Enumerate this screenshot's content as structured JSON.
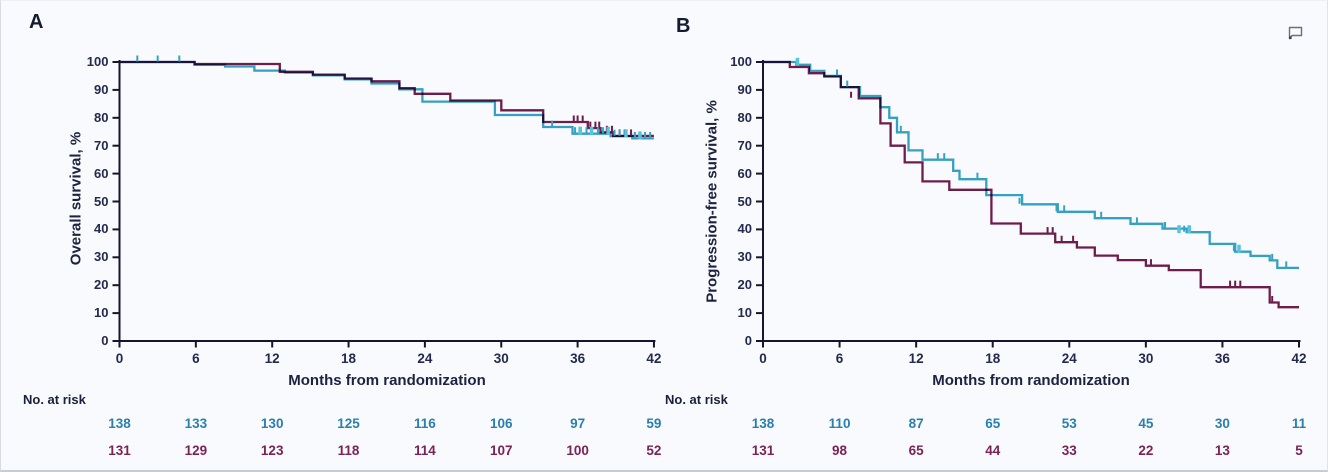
{
  "page": {
    "background": "#f8fafd",
    "icons": {
      "comment": "speech-bubble-outline"
    }
  },
  "colors": {
    "teal": "#37a3c2",
    "teal_bright": "#55c5de",
    "maroon": "#6e1d4b",
    "axis": "#15152e",
    "text": "#1d2240",
    "risk_teal": "#2b7fae",
    "risk_maroon": "#7b2257"
  },
  "chart_data": [
    {
      "type": "line",
      "subtype": "kaplan-meier-step",
      "panel_label": "A",
      "ylabel": "Overall survival, %",
      "xlabel": "Months from randomization",
      "xlim": [
        0,
        42
      ],
      "ylim": [
        0,
        100
      ],
      "grid": false,
      "legend": "none",
      "x_ticks": [
        0,
        6,
        12,
        18,
        24,
        30,
        36,
        42
      ],
      "y_ticks": [
        0,
        10,
        20,
        30,
        40,
        50,
        60,
        70,
        80,
        90,
        100
      ],
      "series": [
        {
          "color_key": "maroon",
          "steps": [
            [
              0,
              100
            ],
            [
              5.9,
              99.3
            ],
            [
              12.6,
              96.5
            ],
            [
              15.2,
              95.5
            ],
            [
              17.7,
              94.1
            ],
            [
              19.8,
              93.1
            ],
            [
              22,
              90.6
            ],
            [
              23.2,
              88.6
            ],
            [
              26,
              86.2
            ],
            [
              30,
              82.7
            ],
            [
              33.3,
              78.5
            ],
            [
              36.8,
              76.3
            ],
            [
              37.8,
              74.8
            ],
            [
              38.8,
              73.5
            ],
            [
              42,
              73.5
            ]
          ],
          "censors": [
            [
              35.7,
              78.5
            ],
            [
              36,
              78.5
            ],
            [
              36.4,
              78.5
            ],
            [
              37,
              76.3
            ],
            [
              37.4,
              76.3
            ],
            [
              37.7,
              76.3
            ],
            [
              38.3,
              74.8
            ],
            [
              38.7,
              74.8
            ],
            [
              39.3,
              73.5
            ],
            [
              39.7,
              73.5
            ],
            [
              40.2,
              73.5
            ]
          ]
        },
        {
          "color_key": "teal",
          "steps": [
            [
              0,
              100
            ],
            [
              5.9,
              99
            ],
            [
              8.3,
              98.4
            ],
            [
              10.6,
              96.9
            ],
            [
              13,
              96.2
            ],
            [
              15.2,
              95.2
            ],
            [
              17.7,
              93.8
            ],
            [
              19.8,
              92.3
            ],
            [
              22,
              90.2
            ],
            [
              23.8,
              85.8
            ],
            [
              29.5,
              81
            ],
            [
              33.3,
              76.7
            ],
            [
              35.6,
              74.3
            ],
            [
              38.6,
              73.4
            ],
            [
              40.3,
              72.6
            ],
            [
              42,
              72.6
            ]
          ],
          "censors": [
            [
              1.4,
              100
            ],
            [
              3,
              100
            ],
            [
              4.7,
              100
            ],
            [
              34,
              76.7
            ],
            [
              35.8,
              74.3
            ],
            [
              36.2,
              74.3,
              1
            ],
            [
              36.7,
              74.3
            ],
            [
              37.1,
              74.3,
              1
            ],
            [
              37.6,
              74.3
            ],
            [
              38,
              74.3
            ],
            [
              38.4,
              74.3,
              1
            ],
            [
              38.9,
              73.4
            ],
            [
              39.3,
              73.4
            ],
            [
              39.8,
              73.4,
              1
            ],
            [
              40.5,
              72.6
            ],
            [
              40.9,
              72.6,
              1
            ],
            [
              41.3,
              72.6
            ],
            [
              41.7,
              72.6
            ]
          ]
        }
      ],
      "no_at_risk": {
        "label": "No. at risk",
        "rows": [
          {
            "color_key": "teal",
            "values": [
              138,
              133,
              130,
              125,
              116,
              106,
              97,
              59
            ]
          },
          {
            "color_key": "maroon",
            "values": [
              131,
              129,
              123,
              118,
              114,
              107,
              100,
              52
            ]
          }
        ]
      }
    },
    {
      "type": "line",
      "subtype": "kaplan-meier-step",
      "panel_label": "B",
      "ylabel": "Progression-free survival, %",
      "xlabel": "Months from randomization",
      "xlim": [
        0,
        42
      ],
      "ylim": [
        0,
        100
      ],
      "grid": false,
      "legend": "none",
      "x_ticks": [
        0,
        6,
        12,
        18,
        24,
        30,
        36,
        42
      ],
      "y_ticks": [
        0,
        10,
        20,
        30,
        40,
        50,
        60,
        70,
        80,
        90,
        100
      ],
      "series": [
        {
          "color_key": "maroon",
          "steps": [
            [
              0,
              100
            ],
            [
              2.1,
              98.2
            ],
            [
              3.6,
              96
            ],
            [
              4.8,
              94.8
            ],
            [
              6.1,
              91
            ],
            [
              7.5,
              87
            ],
            [
              9.2,
              78
            ],
            [
              10,
              70
            ],
            [
              11.1,
              64
            ],
            [
              12.5,
              57.2
            ],
            [
              14.6,
              54.2
            ],
            [
              17.9,
              42.1
            ],
            [
              20.2,
              38.5
            ],
            [
              22.9,
              35.4
            ],
            [
              24.6,
              33.5
            ],
            [
              26,
              30.6
            ],
            [
              27.8,
              29
            ],
            [
              30,
              27
            ],
            [
              31.8,
              25.4
            ],
            [
              34.3,
              19.3
            ],
            [
              39.7,
              13.8
            ],
            [
              40.4,
              12.1
            ],
            [
              42,
              12.1
            ]
          ],
          "censors": [
            [
              6.9,
              87
            ],
            [
              22.3,
              38.5
            ],
            [
              22.7,
              38.5
            ],
            [
              23.4,
              35.4
            ],
            [
              24.3,
              35.4
            ],
            [
              30.4,
              27
            ],
            [
              36.6,
              19.3
            ],
            [
              37,
              19.3
            ],
            [
              37.4,
              19.3
            ],
            [
              39.9,
              13.8
            ]
          ]
        },
        {
          "color_key": "teal",
          "steps": [
            [
              0,
              100
            ],
            [
              2.6,
              99
            ],
            [
              3.7,
              96.8
            ],
            [
              4.8,
              95
            ],
            [
              6.1,
              91
            ],
            [
              7.6,
              87.8
            ],
            [
              9.2,
              83.8
            ],
            [
              9.9,
              80
            ],
            [
              10.5,
              74.8
            ],
            [
              11.4,
              68.3
            ],
            [
              12.5,
              65
            ],
            [
              14.9,
              61
            ],
            [
              15.4,
              58
            ],
            [
              17.5,
              52.3
            ],
            [
              20.3,
              49
            ],
            [
              23.1,
              46.3
            ],
            [
              26,
              44
            ],
            [
              28.8,
              42
            ],
            [
              31.3,
              40.3
            ],
            [
              33.2,
              39
            ],
            [
              35,
              34.8
            ],
            [
              37,
              32
            ],
            [
              38.2,
              30.5
            ],
            [
              39.7,
              28.9
            ],
            [
              40.3,
              26.2
            ],
            [
              42,
              26.2
            ]
          ],
          "censors": [
            [
              2.7,
              99,
              1
            ],
            [
              5.8,
              95
            ],
            [
              6.6,
              91
            ],
            [
              10.8,
              74.8
            ],
            [
              13.7,
              65
            ],
            [
              14.2,
              65
            ],
            [
              16.8,
              58
            ],
            [
              20.1,
              49
            ],
            [
              23,
              46.3
            ],
            [
              23.6,
              46.3
            ],
            [
              26.5,
              44
            ],
            [
              29.3,
              42
            ],
            [
              31.5,
              40.3
            ],
            [
              32.6,
              39,
              1
            ],
            [
              33,
              39
            ],
            [
              33.4,
              39,
              1
            ],
            [
              36.9,
              32
            ],
            [
              37.3,
              32,
              1
            ],
            [
              39.9,
              28.9
            ],
            [
              41,
              26.2
            ]
          ]
        }
      ],
      "no_at_risk": {
        "label": "No. at risk",
        "rows": [
          {
            "color_key": "teal",
            "values": [
              138,
              110,
              87,
              65,
              53,
              45,
              30,
              11
            ]
          },
          {
            "color_key": "maroon",
            "values": [
              131,
              98,
              65,
              44,
              33,
              22,
              13,
              5
            ]
          }
        ]
      }
    }
  ]
}
